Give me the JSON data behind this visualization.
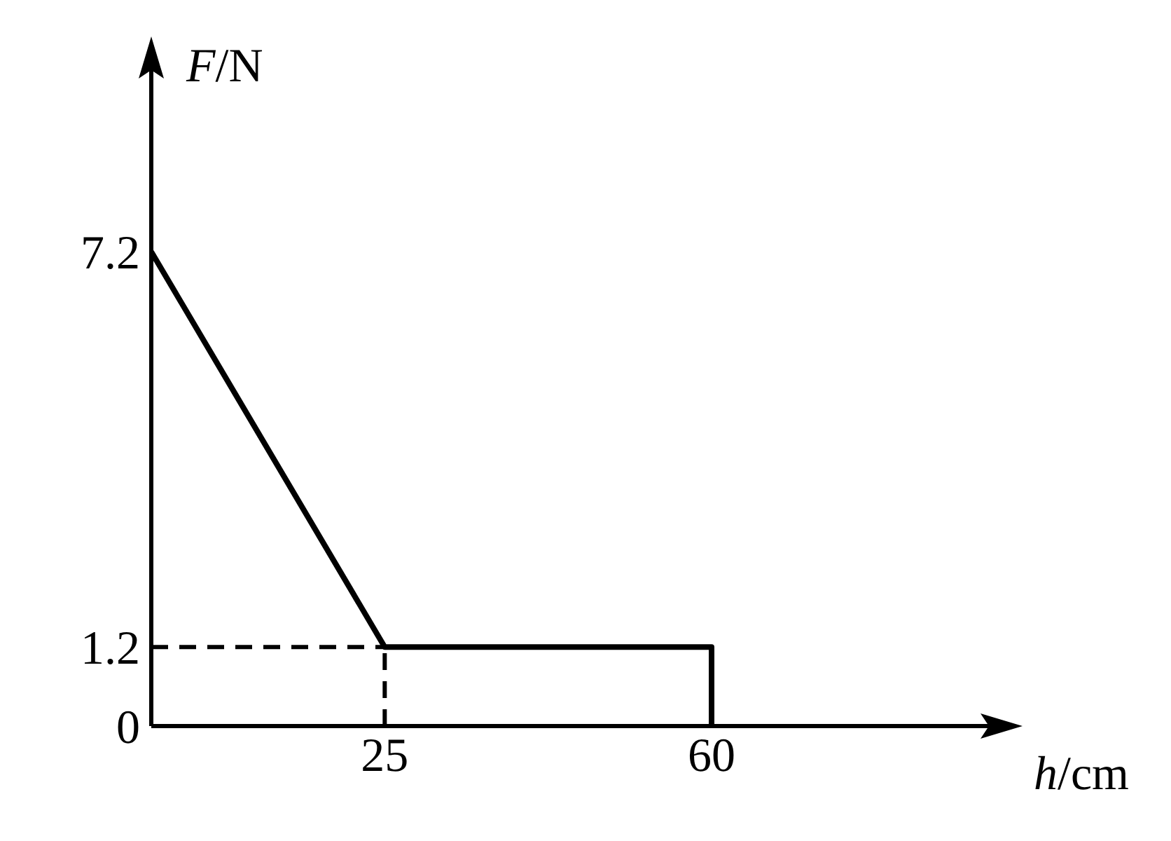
{
  "chart_data": {
    "type": "line",
    "xlabel": "h/cm",
    "ylabel": "F/N",
    "x": [
      0,
      25,
      60,
      60
    ],
    "series": [
      {
        "color": "#000000",
        "values": [
          7.2,
          1.2,
          1.2,
          0
        ]
      }
    ],
    "xlim": [
      0,
      90
    ],
    "ylim": [
      0,
      10
    ],
    "xticks": [
      25,
      60
    ],
    "yticks": [
      0,
      1.2,
      7.2
    ],
    "ref_lines": [
      {
        "axis": "y",
        "value": 1.2,
        "line_style": "dashed",
        "color": "#000000"
      },
      {
        "axis": "x",
        "value": 25,
        "line_style": "dashed",
        "color": "#000000"
      }
    ],
    "grid": false,
    "legend": false,
    "marker": "none",
    "line_style": "solid"
  }
}
